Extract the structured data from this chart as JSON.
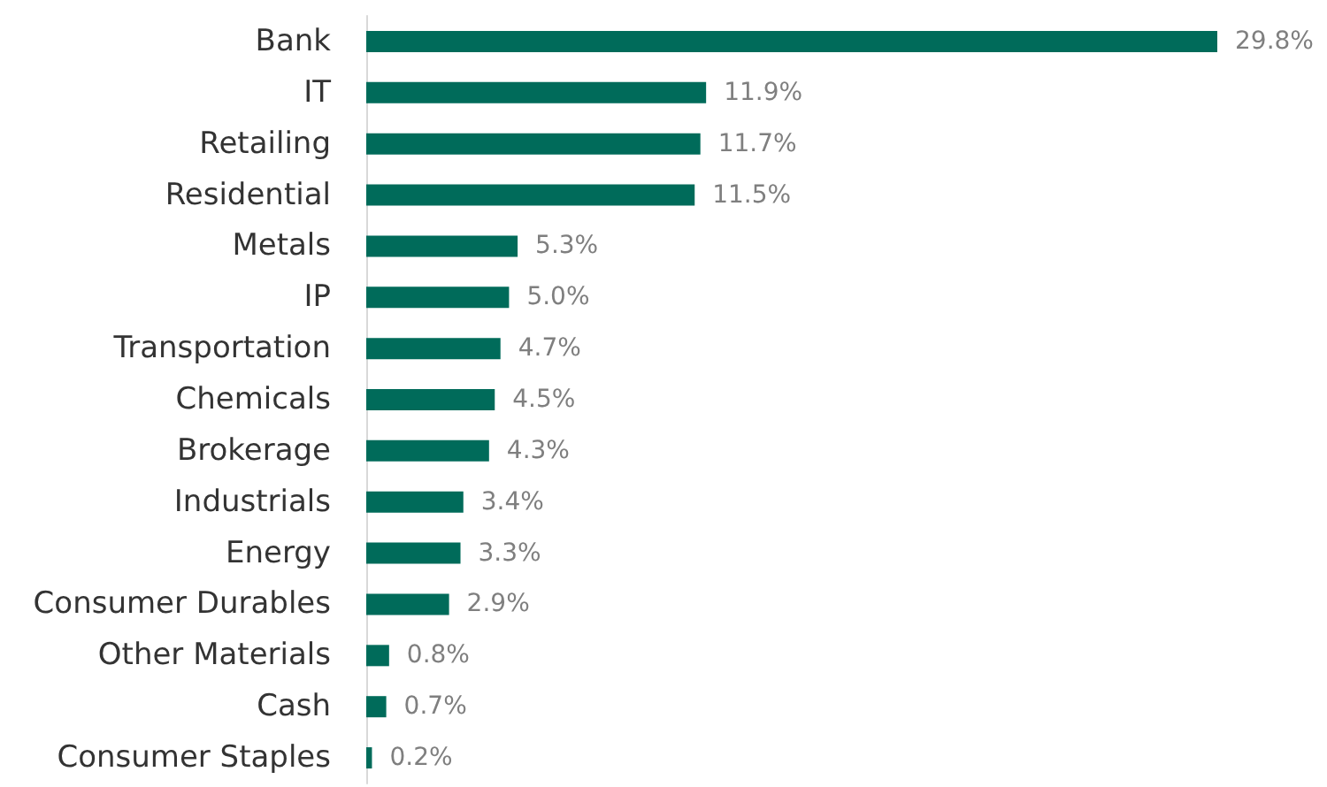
{
  "chart_data": {
    "type": "bar",
    "orientation": "horizontal",
    "categories": [
      "Bank",
      "IT",
      "Retailing",
      "Residential",
      "Metals",
      "IP",
      "Transportation",
      "Chemicals",
      "Brokerage",
      "Industrials",
      "Energy",
      "Consumer Durables",
      "Other Materials",
      "Cash",
      "Consumer Staples"
    ],
    "values": [
      29.8,
      11.9,
      11.7,
      11.5,
      5.3,
      5.0,
      4.7,
      4.5,
      4.3,
      3.4,
      3.3,
      2.9,
      0.8,
      0.7,
      0.2
    ],
    "value_labels": [
      "29.8%",
      "11.9%",
      "11.7%",
      "11.5%",
      "5.3%",
      "5.0%",
      "4.7%",
      "4.5%",
      "4.3%",
      "3.4%",
      "3.3%",
      "2.9%",
      "0.8%",
      "0.7%",
      "0.2%"
    ],
    "color": "#006b5a"
  }
}
